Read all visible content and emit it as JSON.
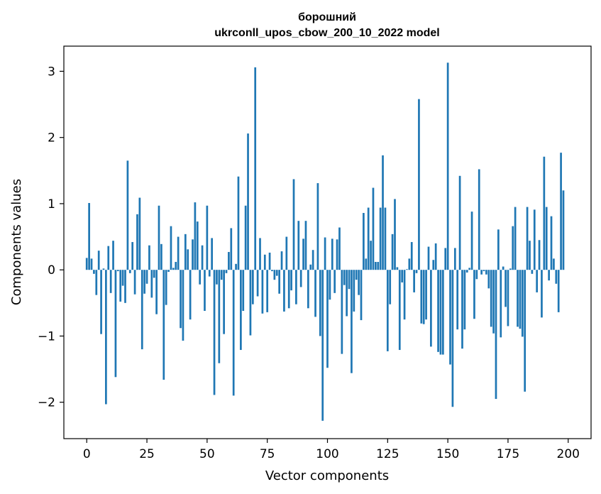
{
  "chart_data": {
    "type": "bar",
    "title": "борошний",
    "subtitle": "ukrconll_upos_cbow_200_10_2022 model",
    "xlabel": "Vector components",
    "ylabel": "Components values",
    "xlim": [
      -9.5,
      209.5
    ],
    "ylim": [
      -2.55,
      3.38
    ],
    "xticks": [
      0,
      25,
      50,
      75,
      100,
      125,
      150,
      175,
      200
    ],
    "yticks": [
      -2,
      -1,
      0,
      1,
      2,
      3
    ],
    "ytick_labels": [
      "−2",
      "−1",
      "0",
      "1",
      "2",
      "3"
    ],
    "bar_color": "#1f77b4",
    "values": [
      0.18,
      1.01,
      0.17,
      -0.06,
      -0.38,
      0.29,
      -0.97,
      0.02,
      -2.03,
      0.36,
      -0.35,
      0.44,
      -1.62,
      -0.02,
      -0.48,
      -0.24,
      -0.5,
      1.65,
      -0.05,
      0.42,
      -0.37,
      0.84,
      1.09,
      -1.2,
      -0.36,
      -0.21,
      0.37,
      -0.42,
      -0.12,
      -0.67,
      0.97,
      0.39,
      -1.66,
      -0.53,
      -0.03,
      0.66,
      0.03,
      0.12,
      0.5,
      -0.88,
      -1.07,
      0.54,
      0.31,
      -0.75,
      0.46,
      1.02,
      0.73,
      -0.22,
      0.37,
      -0.62,
      0.97,
      -0.1,
      0.48,
      -1.89,
      -0.22,
      -1.41,
      -0.15,
      -0.97,
      -0.05,
      0.27,
      0.63,
      -1.9,
      0.09,
      1.41,
      -1.21,
      -0.62,
      0.97,
      2.06,
      -0.99,
      -0.52,
      3.06,
      -0.4,
      0.48,
      -0.66,
      0.23,
      -0.64,
      0.26,
      -0.02,
      -0.15,
      -0.09,
      -0.36,
      0.28,
      -0.63,
      0.5,
      -0.58,
      -0.31,
      1.37,
      -0.52,
      0.74,
      -0.26,
      0.47,
      0.74,
      -0.58,
      0.08,
      0.3,
      -0.71,
      1.31,
      -1.0,
      -2.28,
      0.49,
      -1.48,
      -0.45,
      0.47,
      -0.35,
      0.46,
      0.64,
      -1.27,
      -0.23,
      -0.7,
      -0.29,
      -1.56,
      -0.63,
      -0.15,
      -0.38,
      -0.76,
      0.86,
      0.17,
      0.94,
      0.44,
      1.24,
      0.12,
      0.12,
      0.94,
      1.73,
      0.94,
      -1.23,
      -0.52,
      0.54,
      1.07,
      0.04,
      -1.21,
      -0.19,
      -0.75,
      0.01,
      0.17,
      0.42,
      -0.34,
      -0.05,
      2.58,
      -0.81,
      -0.82,
      -0.75,
      0.35,
      -1.16,
      0.15,
      0.4,
      -1.24,
      -1.28,
      -1.28,
      0.33,
      3.13,
      -1.43,
      -2.07,
      0.33,
      -0.9,
      1.42,
      -1.19,
      -0.9,
      -0.04,
      0.03,
      0.88,
      -0.74,
      -0.14,
      1.52,
      -0.07,
      -0.02,
      -0.07,
      -0.28,
      -0.86,
      -0.96,
      -1.95,
      0.61,
      -1.02,
      0.05,
      -0.56,
      -0.85,
      0.02,
      0.66,
      0.95,
      -0.86,
      -0.89,
      -1.01,
      -1.84,
      0.95,
      0.44,
      -0.06,
      0.91,
      -0.34,
      0.45,
      -0.72,
      1.71,
      0.95,
      -0.16,
      0.81,
      0.17,
      -0.21,
      -0.64,
      1.77,
      1.2
    ]
  }
}
